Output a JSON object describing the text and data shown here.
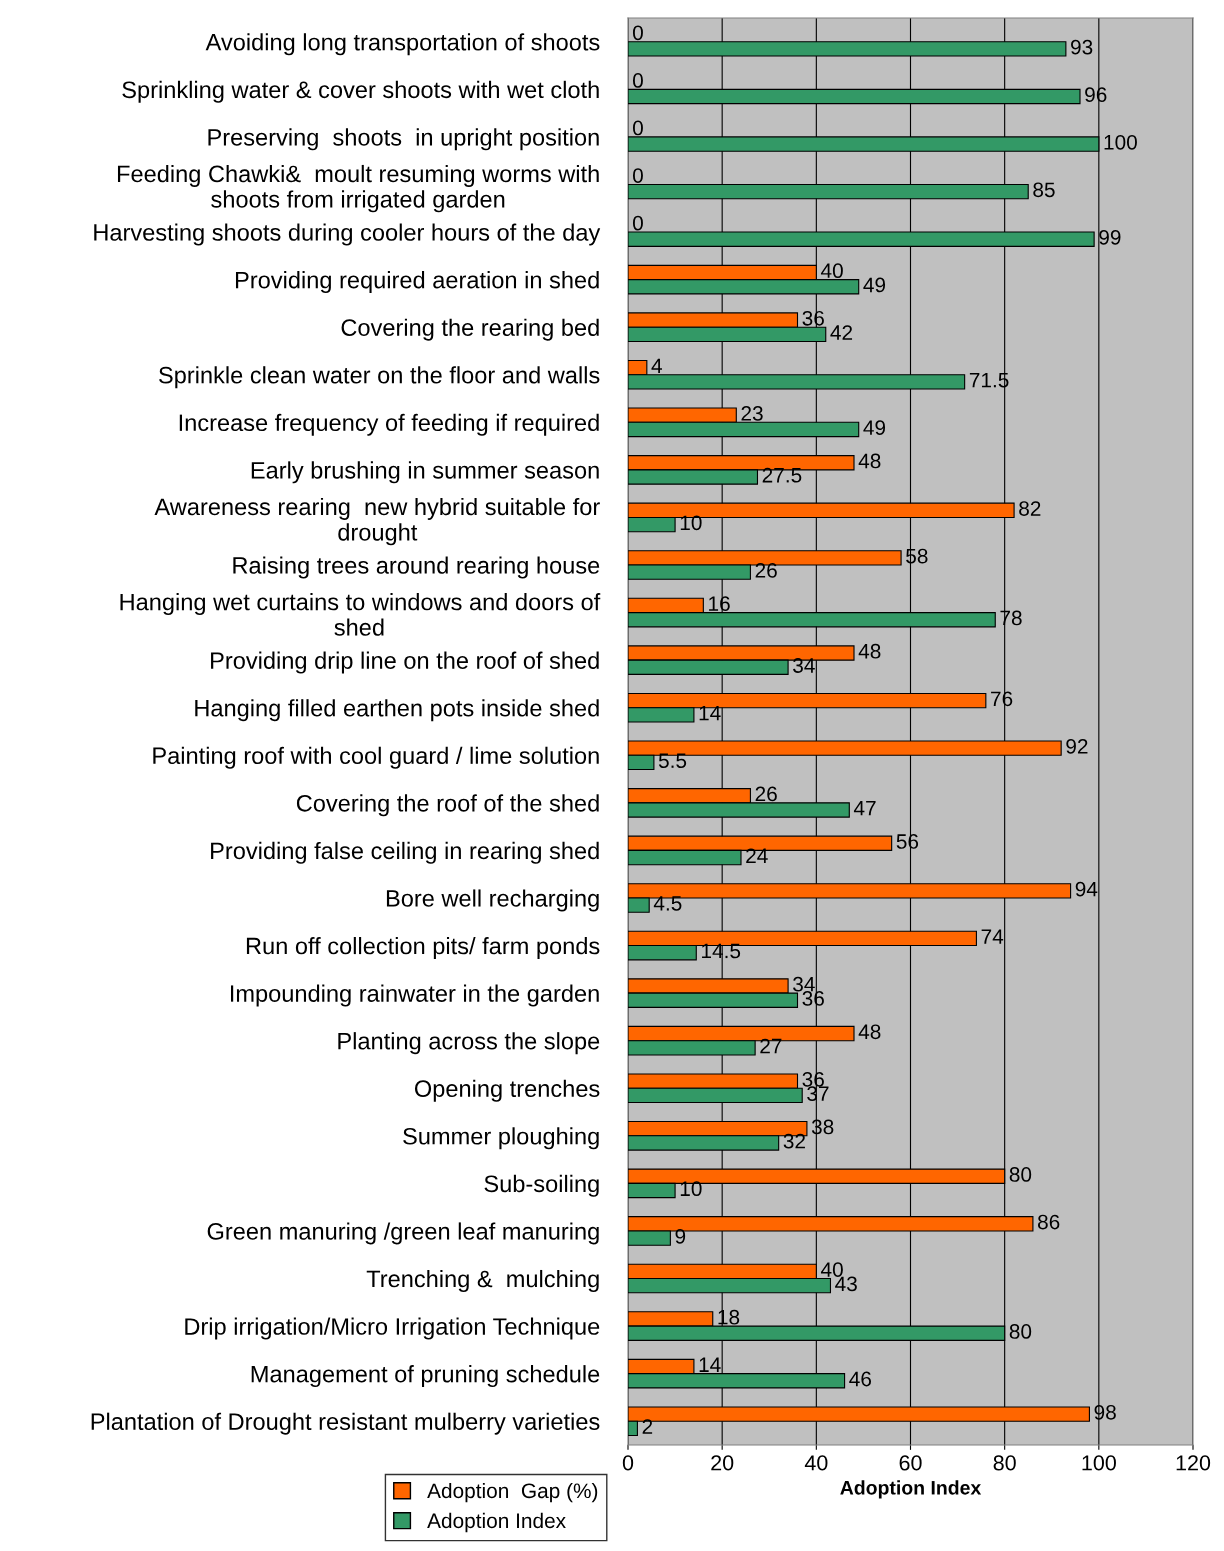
{
  "chart_data": {
    "type": "bar",
    "orientation": "horizontal",
    "xlabel": "Adoption Index",
    "categories": [
      "Avoiding long transportation of shoots",
      "Sprinkling water & cover shoots with wet cloth",
      "Preserving  shoots  in upright position",
      "Feeding Chawki&  moult resuming worms with\nshoots from irrigated garden",
      "Harvesting shoots during cooler hours of the day",
      "Providing required aeration in shed",
      "Covering the rearing bed",
      "Sprinkle clean water on the floor and walls",
      "Increase frequency of feeding if required",
      "Early brushing in summer season",
      "Awareness rearing  new hybrid suitable for\ndrought",
      "Raising trees around rearing house",
      "Hanging wet curtains to windows and doors of\nshed",
      "Providing drip line on the roof of shed",
      "Hanging filled earthen pots inside shed",
      "Painting roof with cool guard / lime solution",
      "Covering the roof of the shed",
      "Providing false ceiling in rearing shed",
      "Bore well recharging",
      "Run off collection pits/ farm ponds",
      "Impounding rainwater in the garden",
      "Planting across the slope",
      "Opening trenches",
      "Summer ploughing",
      "Sub-soiling",
      "Green manuring /green leaf manuring",
      "Trenching &  mulching",
      "Drip irrigation/Micro Irrigation Technique",
      "Management of pruning schedule",
      "Plantation of Drought resistant mulberry varieties"
    ],
    "series": [
      {
        "name": "Adoption  Gap (%)",
        "color": "#ff6600",
        "values": [
          0,
          0,
          0,
          0,
          0,
          40,
          36,
          4,
          23,
          48,
          82,
          58,
          16,
          48,
          76,
          92,
          26,
          56,
          94,
          74,
          34,
          48,
          36,
          38,
          80,
          86,
          40,
          18,
          14,
          98
        ]
      },
      {
        "name": "Adoption Index",
        "color": "#339966",
        "values": [
          93,
          96,
          100,
          85,
          99,
          49,
          42,
          71.5,
          49,
          27.5,
          10,
          26,
          78,
          34,
          14,
          5.5,
          47,
          24,
          4.5,
          14.5,
          36,
          27,
          37,
          32,
          10,
          9,
          43,
          80,
          46,
          2
        ]
      }
    ],
    "xlim": [
      0,
      120
    ],
    "xticks": [
      0,
      20,
      40,
      60,
      80,
      100,
      120
    ],
    "grid": "x",
    "legend": "bottom left",
    "data_labels": true
  }
}
